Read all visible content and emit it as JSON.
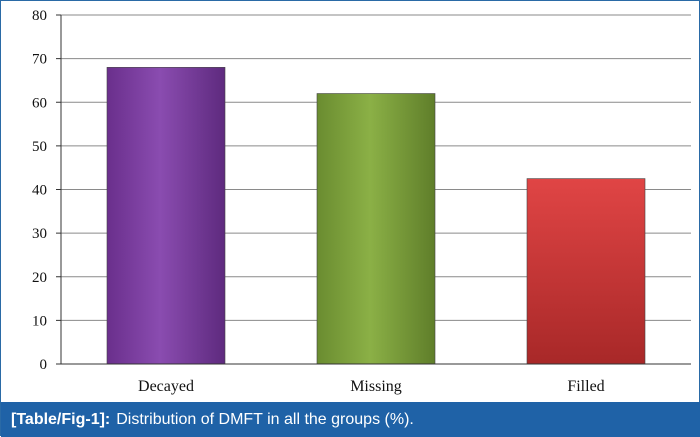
{
  "chart_data": {
    "type": "bar",
    "categories": [
      "Decayed",
      "Missing",
      "Filled"
    ],
    "values": [
      68,
      62,
      42.5
    ],
    "ylim": [
      0,
      80
    ],
    "yticks": [
      0,
      10,
      20,
      30,
      40,
      50,
      60,
      70,
      80
    ],
    "grid": true,
    "colors": [
      "#7b3f9e",
      "#7da03c",
      "#d33a3a"
    ]
  },
  "caption": {
    "label": "[Table/Fig-1]:",
    "text": "Distribution of DMFT in all the groups (%)."
  }
}
